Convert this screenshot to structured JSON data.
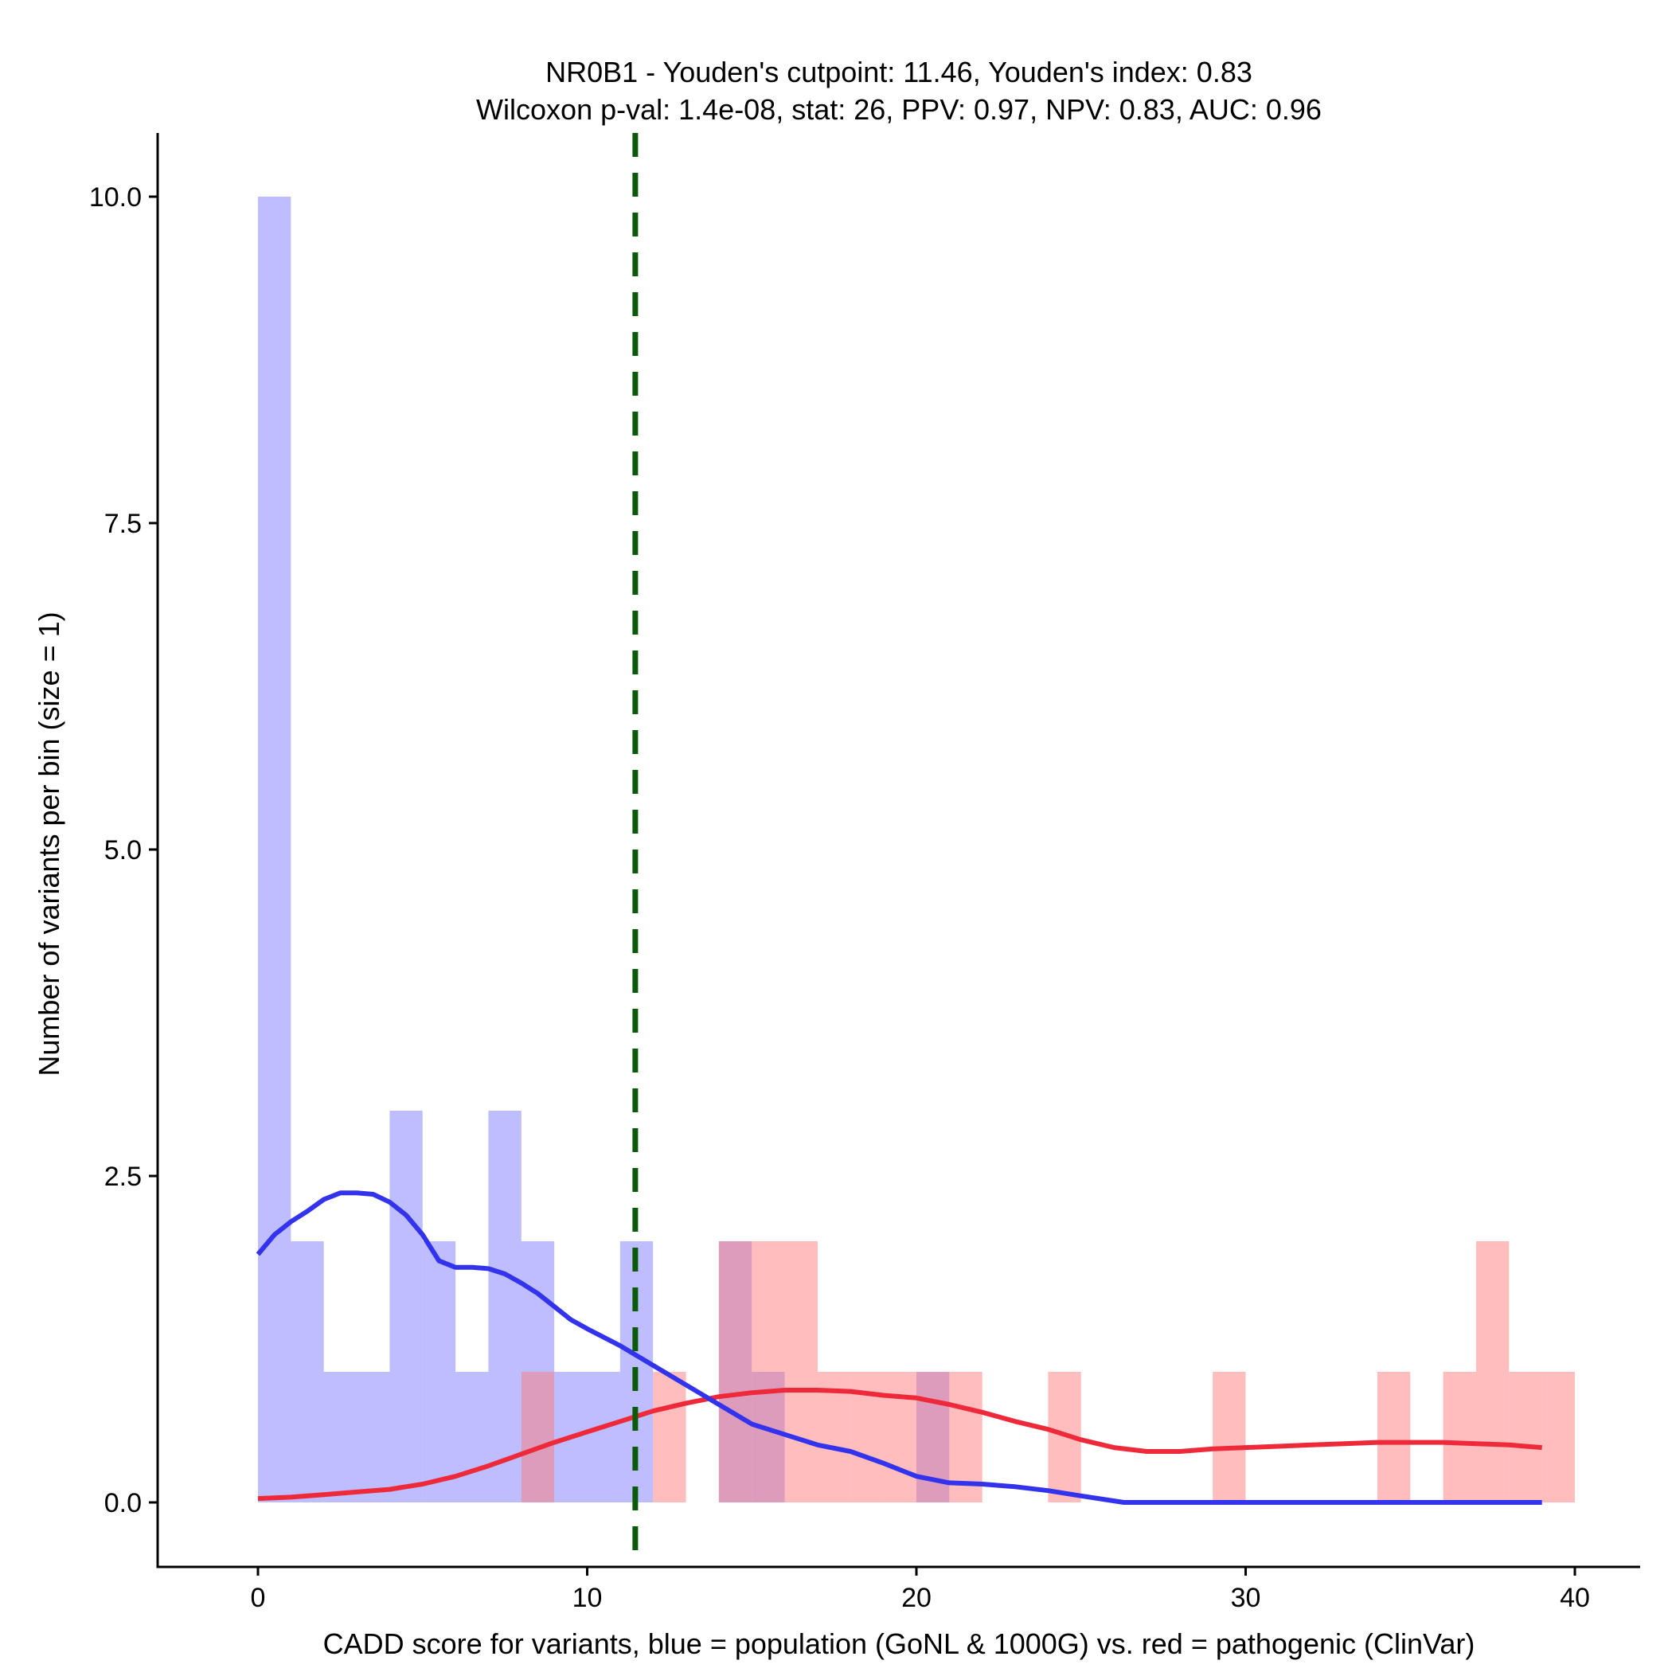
{
  "chart_data": {
    "type": "histogram",
    "title_line1": "NR0B1 - Youden's cutpoint: 11.46, Youden's index: 0.83",
    "title_line2": "Wilcoxon p-val: 1.4e-08, stat: 26, PPV: 0.97, NPV: 0.83, AUC: 0.96",
    "xlabel": "CADD score for variants, blue = population (GoNL & 1000G) vs. red = pathogenic (ClinVar)",
    "ylabel": "Number of variants per bin (size = 1)",
    "xlim": [
      -3,
      42
    ],
    "ylim": [
      -0.5,
      10.5
    ],
    "x_ticks": [
      0,
      10,
      20,
      30,
      40
    ],
    "x_tick_labels": [
      "0",
      "10",
      "20",
      "30",
      "40"
    ],
    "y_ticks": [
      0,
      2.5,
      5,
      7.5,
      10
    ],
    "y_tick_labels": [
      "0.0",
      "2.5",
      "5.0",
      "7.5",
      "10.0"
    ],
    "bin_size": 1,
    "cutpoint": 11.46,
    "colors": {
      "population_bar": "#7b7bff",
      "pathogenic_bar": "#ff7b7b",
      "population_line": "#3333ee",
      "pathogenic_line": "#ee2a3a",
      "cutpoint": "#0a5a0a",
      "axis": "#000000"
    },
    "series": [
      {
        "name": "population (GoNL & 1000G)",
        "color": "blue",
        "bins": [
          {
            "x0": 0,
            "count": 10
          },
          {
            "x0": 1,
            "count": 2
          },
          {
            "x0": 2,
            "count": 1
          },
          {
            "x0": 3,
            "count": 1
          },
          {
            "x0": 4,
            "count": 3
          },
          {
            "x0": 5,
            "count": 2
          },
          {
            "x0": 6,
            "count": 1
          },
          {
            "x0": 7,
            "count": 3
          },
          {
            "x0": 8,
            "count": 2
          },
          {
            "x0": 9,
            "count": 1
          },
          {
            "x0": 10,
            "count": 1
          },
          {
            "x0": 11,
            "count": 2
          },
          {
            "x0": 14,
            "count": 2
          },
          {
            "x0": 15,
            "count": 1
          },
          {
            "x0": 20,
            "count": 1
          }
        ],
        "density_curve": [
          [
            0,
            1.9
          ],
          [
            0.5,
            2.05
          ],
          [
            1,
            2.15
          ],
          [
            1.5,
            2.23
          ],
          [
            2,
            2.32
          ],
          [
            2.5,
            2.37
          ],
          [
            3,
            2.37
          ],
          [
            3.5,
            2.36
          ],
          [
            4,
            2.3
          ],
          [
            4.5,
            2.2
          ],
          [
            5,
            2.05
          ],
          [
            5.5,
            1.85
          ],
          [
            6,
            1.8
          ],
          [
            6.5,
            1.8
          ],
          [
            7,
            1.79
          ],
          [
            7.5,
            1.75
          ],
          [
            8,
            1.68
          ],
          [
            8.5,
            1.6
          ],
          [
            9,
            1.5
          ],
          [
            9.5,
            1.4
          ],
          [
            10,
            1.33
          ],
          [
            11,
            1.2
          ],
          [
            12,
            1.05
          ],
          [
            13,
            0.9
          ],
          [
            14,
            0.75
          ],
          [
            15,
            0.6
          ],
          [
            16,
            0.52
          ],
          [
            17,
            0.44
          ],
          [
            18,
            0.39
          ],
          [
            19,
            0.3
          ],
          [
            20,
            0.2
          ],
          [
            21,
            0.15
          ],
          [
            22,
            0.14
          ],
          [
            23,
            0.12
          ],
          [
            24,
            0.09
          ],
          [
            25,
            0.05
          ],
          [
            26.3,
            0
          ],
          [
            30,
            0
          ],
          [
            35,
            0
          ],
          [
            39,
            0
          ]
        ]
      },
      {
        "name": "pathogenic (ClinVar)",
        "color": "red",
        "bins": [
          {
            "x0": 8,
            "count": 1
          },
          {
            "x0": 12,
            "count": 1
          },
          {
            "x0": 14,
            "count": 2
          },
          {
            "x0": 15,
            "count": 2
          },
          {
            "x0": 16,
            "count": 2
          },
          {
            "x0": 17,
            "count": 1
          },
          {
            "x0": 18,
            "count": 1
          },
          {
            "x0": 19,
            "count": 1
          },
          {
            "x0": 20,
            "count": 1
          },
          {
            "x0": 21,
            "count": 1
          },
          {
            "x0": 24,
            "count": 1
          },
          {
            "x0": 29,
            "count": 1
          },
          {
            "x0": 34,
            "count": 1
          },
          {
            "x0": 36,
            "count": 1
          },
          {
            "x0": 37,
            "count": 2
          },
          {
            "x0": 38,
            "count": 1
          },
          {
            "x0": 39,
            "count": 1
          }
        ],
        "density_curve": [
          [
            0,
            0.03
          ],
          [
            1,
            0.04
          ],
          [
            2,
            0.06
          ],
          [
            3,
            0.08
          ],
          [
            4,
            0.1
          ],
          [
            5,
            0.14
          ],
          [
            6,
            0.2
          ],
          [
            7,
            0.28
          ],
          [
            8,
            0.37
          ],
          [
            9,
            0.46
          ],
          [
            10,
            0.54
          ],
          [
            11,
            0.62
          ],
          [
            12,
            0.7
          ],
          [
            13,
            0.76
          ],
          [
            14,
            0.81
          ],
          [
            15,
            0.84
          ],
          [
            16,
            0.86
          ],
          [
            17,
            0.86
          ],
          [
            18,
            0.85
          ],
          [
            19,
            0.82
          ],
          [
            20,
            0.8
          ],
          [
            21,
            0.75
          ],
          [
            22,
            0.69
          ],
          [
            23,
            0.62
          ],
          [
            24,
            0.56
          ],
          [
            25,
            0.48
          ],
          [
            26,
            0.42
          ],
          [
            27,
            0.39
          ],
          [
            28,
            0.39
          ],
          [
            29,
            0.41
          ],
          [
            30,
            0.42
          ],
          [
            31,
            0.43
          ],
          [
            32,
            0.44
          ],
          [
            33,
            0.45
          ],
          [
            34,
            0.46
          ],
          [
            35,
            0.46
          ],
          [
            36,
            0.46
          ],
          [
            37,
            0.45
          ],
          [
            38,
            0.44
          ],
          [
            39,
            0.42
          ]
        ]
      }
    ]
  }
}
